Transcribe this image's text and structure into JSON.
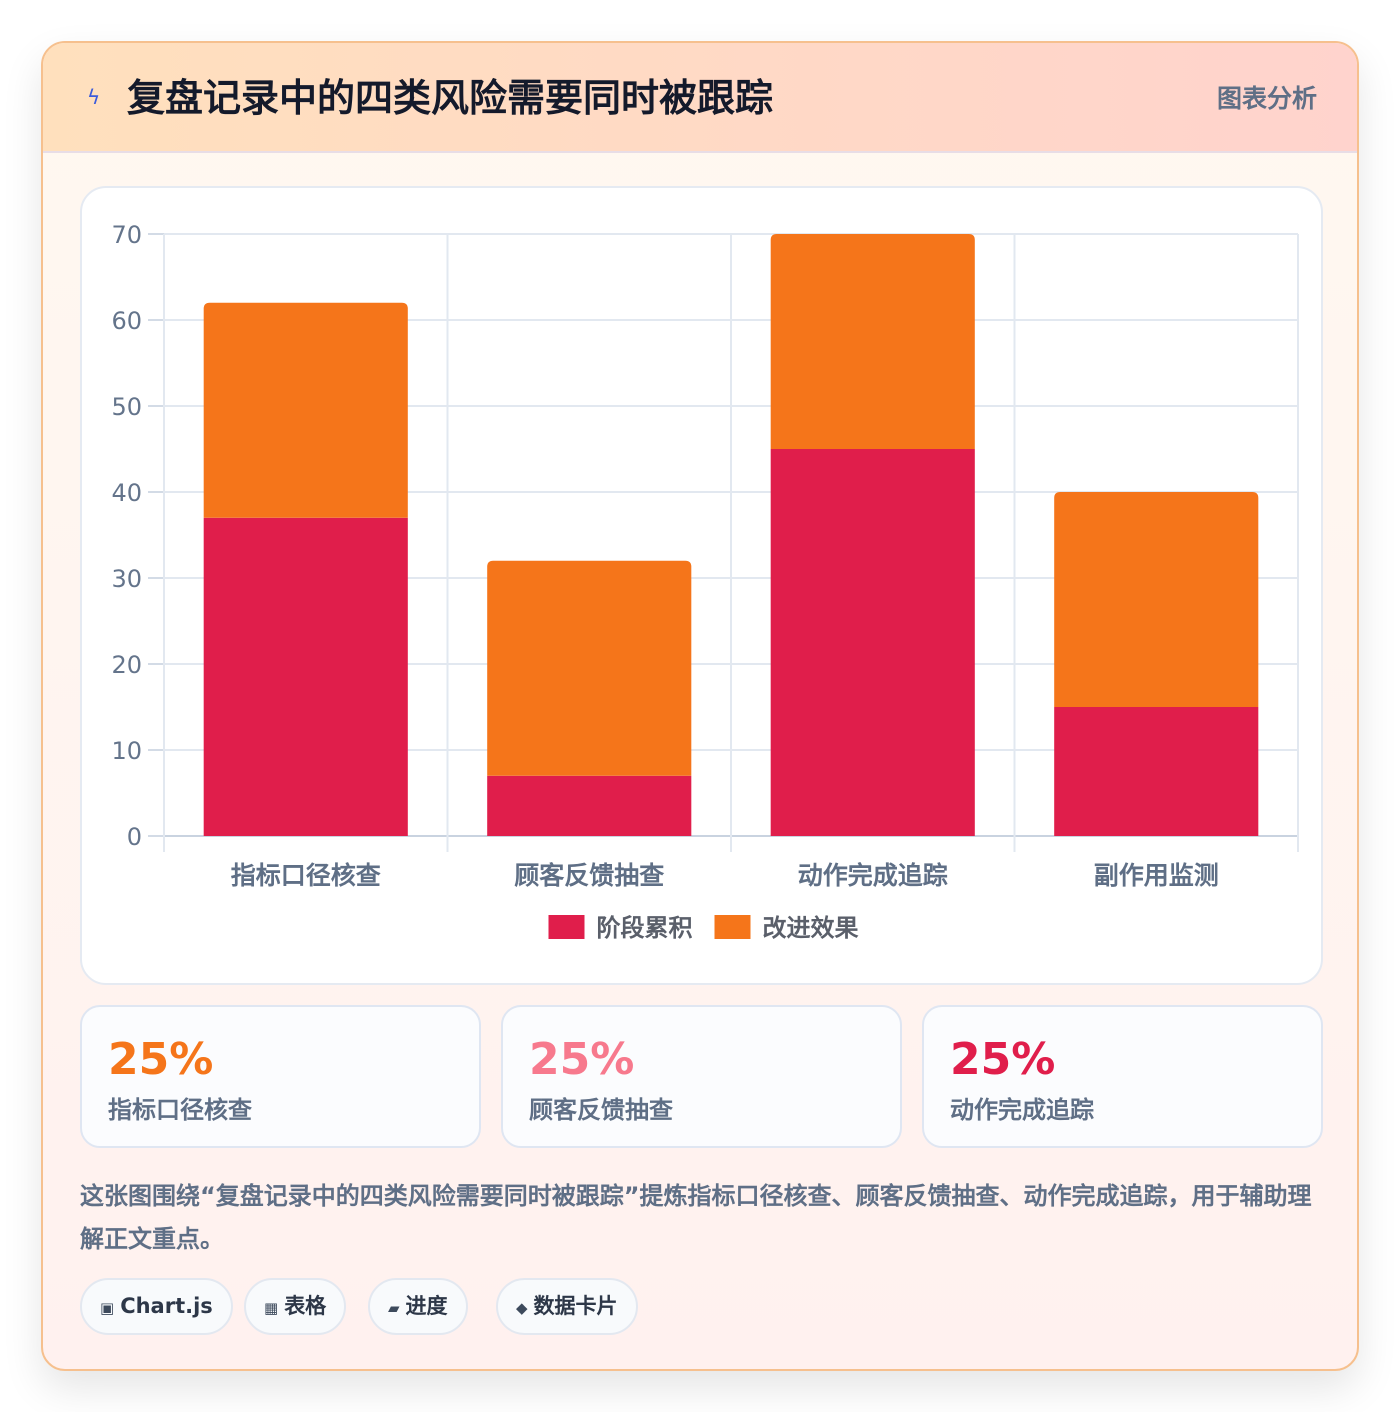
{
  "header": {
    "title": "复盘记录中的四类风险需要同时被跟踪",
    "badge": "图表分析",
    "icon": "bolt-icon"
  },
  "chart_data": {
    "type": "bar",
    "stacked": true,
    "categories": [
      "指标口径核查",
      "顾客反馈抽查",
      "动作完成追踪",
      "副作用监测"
    ],
    "series": [
      {
        "name": "阶段累积",
        "values": [
          37,
          7,
          45,
          15
        ],
        "color": "#e01e4b"
      },
      {
        "name": "改进效果",
        "values": [
          25,
          25,
          25,
          25
        ],
        "color": "#f5751a"
      }
    ],
    "ylim": [
      0,
      70
    ],
    "yticks": [
      "0",
      "10",
      "20",
      "30",
      "40",
      "50",
      "60",
      "70"
    ],
    "grid": true,
    "legend": "bottom"
  },
  "stats": [
    {
      "value": "25%",
      "label": "指标口径核查",
      "color": "#f5751a"
    },
    {
      "value": "25%",
      "label": "顾客反馈抽查",
      "color": "#f7798d"
    },
    {
      "value": "25%",
      "label": "动作完成追踪",
      "color": "#e01e4b"
    }
  ],
  "summary": "这张图围绕“复盘记录中的四类风险需要同时被跟踪”提炼指标口径核查、顾客反馈抽查、动作完成追踪，用于辅助理解正文重点。",
  "chips": [
    {
      "icon": "▣",
      "label": "Chart.js"
    },
    {
      "icon": "▦",
      "label": "表格"
    },
    {
      "icon": "▰",
      "label": "进度"
    },
    {
      "icon": "◆",
      "label": "数据卡片"
    }
  ]
}
